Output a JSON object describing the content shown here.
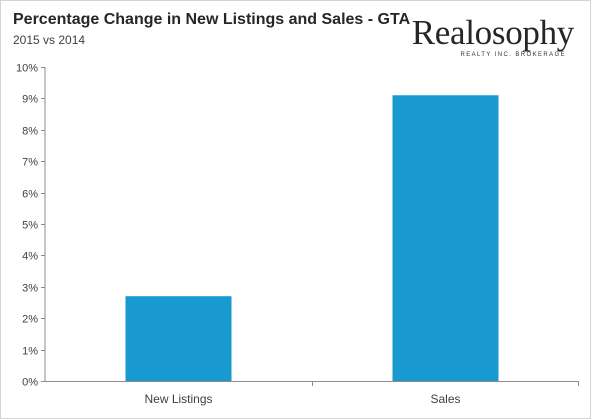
{
  "header": {
    "title": "Percentage Change in New Listings and Sales - GTA",
    "subtitle": "2015 vs 2014"
  },
  "brand": {
    "name": "Realosophy",
    "tagline": "REALTY INC. BROKERAGE"
  },
  "colors": {
    "bar": "#1899CF",
    "axis": "#8C8C8C",
    "text": "#404040"
  },
  "chart_data": {
    "type": "bar",
    "title": "Percentage Change in New Listings and Sales - GTA",
    "subtitle": "2015 vs 2014",
    "categories": [
      "New Listings",
      "Sales"
    ],
    "values": [
      2.7,
      9.1
    ],
    "unit": "%",
    "ylim": [
      0,
      10
    ],
    "yticks": [
      0,
      1,
      2,
      3,
      4,
      5,
      6,
      7,
      8,
      9,
      10
    ],
    "ytick_labels": [
      "0%",
      "1%",
      "2%",
      "3%",
      "4%",
      "5%",
      "6%",
      "7%",
      "8%",
      "9%",
      "10%"
    ],
    "xlabel": "",
    "ylabel": "",
    "grid": false,
    "legend": "none"
  }
}
